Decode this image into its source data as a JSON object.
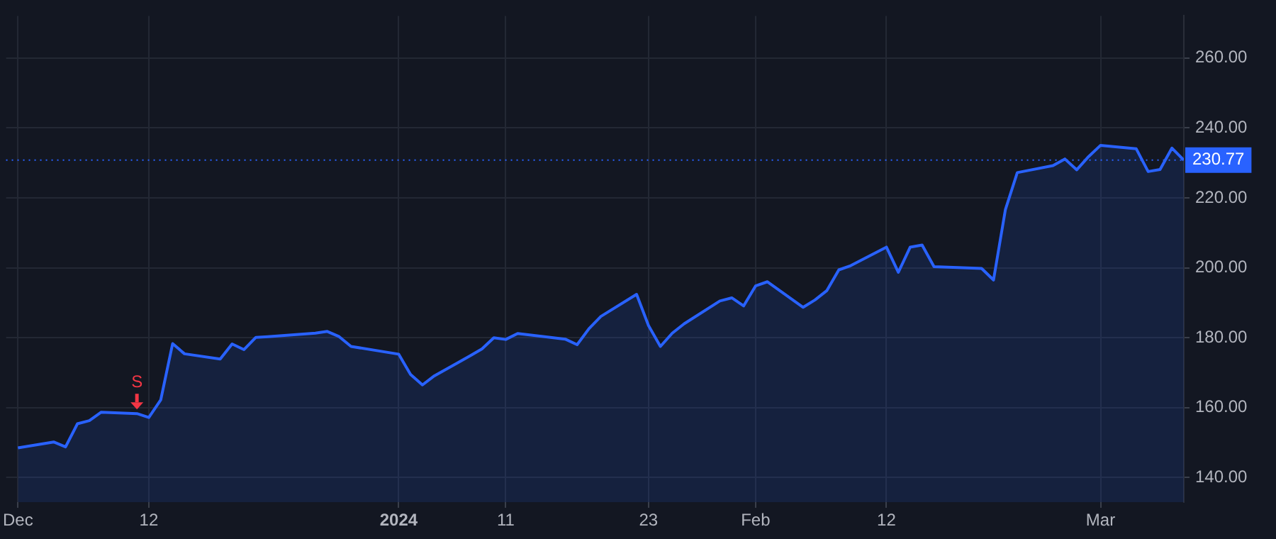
{
  "chart_data": {
    "type": "area",
    "x": [
      "2023-12-01",
      "2023-12-04",
      "2023-12-05",
      "2023-12-06",
      "2023-12-07",
      "2023-12-08",
      "2023-12-11",
      "2023-12-12",
      "2023-12-13",
      "2023-12-14",
      "2023-12-15",
      "2023-12-18",
      "2023-12-19",
      "2023-12-20",
      "2023-12-21",
      "2023-12-22",
      "2023-12-26",
      "2023-12-27",
      "2023-12-28",
      "2023-12-29",
      "2024-01-02",
      "2024-01-03",
      "2024-01-04",
      "2024-01-05",
      "2024-01-08",
      "2024-01-09",
      "2024-01-10",
      "2024-01-11",
      "2024-01-12",
      "2024-01-16",
      "2024-01-17",
      "2024-01-18",
      "2024-01-19",
      "2024-01-22",
      "2024-01-23",
      "2024-01-24",
      "2024-01-25",
      "2024-01-26",
      "2024-01-29",
      "2024-01-30",
      "2024-01-31",
      "2024-02-01",
      "2024-02-02",
      "2024-02-05",
      "2024-02-06",
      "2024-02-07",
      "2024-02-08",
      "2024-02-09",
      "2024-02-12",
      "2024-02-13",
      "2024-02-14",
      "2024-02-15",
      "2024-02-16",
      "2024-02-20",
      "2024-02-21",
      "2024-02-22",
      "2024-02-23",
      "2024-02-26",
      "2024-02-27",
      "2024-02-28",
      "2024-02-29",
      "2024-03-01",
      "2024-03-04",
      "2024-03-05",
      "2024-03-06",
      "2024-03-07",
      "2024-03-08"
    ],
    "series": [
      {
        "color": "#2962ff",
        "values": [
          148.5,
          150.2,
          148.8,
          155.4,
          156.3,
          158.7,
          158.3,
          157.2,
          162.2,
          178.3,
          175.4,
          173.9,
          178.2,
          176.6,
          180.1,
          180.3,
          181.3,
          181.8,
          180.3,
          177.5,
          175.3,
          169.5,
          166.5,
          169.1,
          174.8,
          176.8,
          180.0,
          179.5,
          181.2,
          179.6,
          178.0,
          182.6,
          186.1,
          192.4,
          183.5,
          177.5,
          181.3,
          184.0,
          190.5,
          191.4,
          189.1,
          194.8,
          196.0,
          188.7,
          190.8,
          193.5,
          199.4,
          200.6,
          205.9,
          198.7,
          205.9,
          206.5,
          200.3,
          199.8,
          196.5,
          216.6,
          227.2,
          229.2,
          231.1,
          228.0,
          231.8,
          235.0,
          234.0,
          227.5,
          228.1,
          234.2,
          230.77
        ]
      }
    ],
    "xticks": [
      {
        "value": "2023-12-01",
        "label": "Dec"
      },
      {
        "value": "2023-12-12",
        "label": "12"
      },
      {
        "value": "2024-01-02",
        "label": "2024"
      },
      {
        "value": "2024-01-11",
        "label": "11"
      },
      {
        "value": "2024-01-23",
        "label": "23"
      },
      {
        "value": "2024-02-01",
        "label": "Feb"
      },
      {
        "value": "2024-02-12",
        "label": "12"
      },
      {
        "value": "2024-03-01",
        "label": "Mar"
      }
    ],
    "xlim": [
      "2023-11-30",
      "2024-03-08"
    ],
    "ylim": [
      133,
      272
    ],
    "yticks": [
      {
        "value": 140,
        "label": "140.00"
      },
      {
        "value": 160,
        "label": "160.00"
      },
      {
        "value": 180,
        "label": "180.00"
      },
      {
        "value": 200,
        "label": "200.00"
      },
      {
        "value": 220,
        "label": "220.00"
      },
      {
        "value": 240,
        "label": "240.00"
      },
      {
        "value": 260,
        "label": "260.00"
      }
    ],
    "ref_lines": [
      {
        "axis": "y",
        "value": 230.77,
        "label": "230.77",
        "color": "#2962ff",
        "line_style": "dotted"
      }
    ],
    "annotations": [
      {
        "text": "S",
        "x": "2023-12-11",
        "y": 158.3
      }
    ],
    "grid": true,
    "legend": false
  }
}
